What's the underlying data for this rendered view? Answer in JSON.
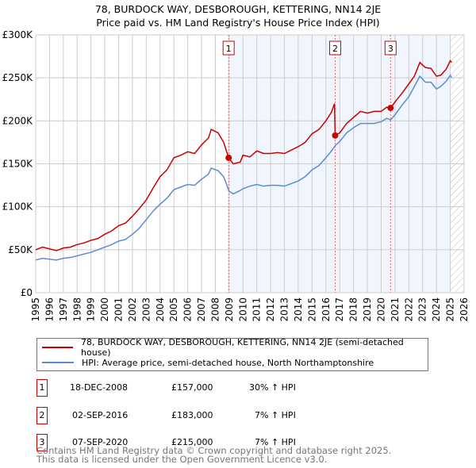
{
  "title": "78, BURDOCK WAY, DESBOROUGH, KETTERING, NN14 2JE",
  "subtitle": "Price paid vs. HM Land Registry's House Price Index (HPI)",
  "chart_data": {
    "type": "line",
    "title": "78, BURDOCK WAY, DESBOROUGH, KETTERING, NN14 2JE — Price paid vs. HM Land Registry's House Price Index (HPI)",
    "xlim": [
      1995,
      2026
    ],
    "ylim": [
      0,
      300000
    ],
    "x_ticks": [
      "1995",
      "1996",
      "1997",
      "1998",
      "1999",
      "2000",
      "2001",
      "2002",
      "2003",
      "2004",
      "2005",
      "2006",
      "2007",
      "2008",
      "2009",
      "2010",
      "2011",
      "2012",
      "2013",
      "2014",
      "2015",
      "2016",
      "2017",
      "2018",
      "2019",
      "2020",
      "2021",
      "2022",
      "2023",
      "2024",
      "2025",
      "2026"
    ],
    "y_ticks": [
      {
        "v": 0,
        "label": "£0"
      },
      {
        "v": 50000,
        "label": "£50K"
      },
      {
        "v": 100000,
        "label": "£100K"
      },
      {
        "v": 150000,
        "label": "£150K"
      },
      {
        "v": 200000,
        "label": "£200K"
      },
      {
        "v": 250000,
        "label": "£250K"
      },
      {
        "v": 300000,
        "label": "£300K"
      }
    ],
    "grid": true,
    "series": [
      {
        "name": "78, BURDOCK WAY, DESBOROUGH, KETTERING, NN14 2JE (semi-detached house)",
        "color": "#cc0000",
        "x": [
          1995,
          1995.5,
          1996,
          1996.5,
          1997,
          1997.5,
          1998,
          1998.5,
          1999,
          1999.5,
          2000,
          2000.5,
          2001,
          2001.5,
          2002,
          2002.5,
          2003,
          2003.5,
          2004,
          2004.5,
          2005,
          2005.5,
          2006,
          2006.5,
          2007,
          2007.5,
          2007.7,
          2008.2,
          2008.6,
          2008.96,
          2009.3,
          2009.8,
          2010,
          2010.5,
          2011,
          2011.5,
          2012,
          2012.5,
          2013,
          2013.5,
          2014,
          2014.5,
          2015,
          2015.5,
          2016,
          2016.4,
          2016.62,
          2016.67,
          2017,
          2017.5,
          2018,
          2018.5,
          2019,
          2019.5,
          2020,
          2020.4,
          2020.68,
          2021,
          2021.5,
          2022,
          2022.4,
          2022.8,
          2023.2,
          2023.6,
          2024,
          2024.3,
          2024.7,
          2025,
          2025.1
        ],
        "y": [
          50000,
          53000,
          51000,
          49000,
          52000,
          53000,
          56000,
          58000,
          61000,
          63000,
          68000,
          72000,
          78000,
          81000,
          89000,
          98000,
          108000,
          122000,
          135000,
          143000,
          157000,
          160000,
          164000,
          162000,
          172000,
          180000,
          190000,
          186000,
          175000,
          157000,
          150000,
          152000,
          160000,
          158000,
          165000,
          162000,
          162000,
          163000,
          162000,
          166000,
          170000,
          175000,
          185000,
          190000,
          200000,
          210000,
          220000,
          183000,
          186000,
          197000,
          204000,
          211000,
          209000,
          211000,
          211000,
          216000,
          215000,
          222000,
          232000,
          243000,
          252000,
          268000,
          262000,
          261000,
          252000,
          253000,
          260000,
          270000,
          268000
        ]
      },
      {
        "name": "HPI: Average price, semi-detached house, North Northamptonshire",
        "color": "#5b8bd0",
        "x": [
          1995,
          1995.5,
          1996,
          1996.5,
          1997,
          1997.5,
          1998,
          1998.5,
          1999,
          1999.5,
          2000,
          2000.5,
          2001,
          2001.5,
          2002,
          2002.5,
          2003,
          2003.5,
          2004,
          2004.5,
          2005,
          2005.5,
          2006,
          2006.5,
          2007,
          2007.5,
          2007.7,
          2008.2,
          2008.6,
          2009,
          2009.3,
          2009.8,
          2010,
          2010.5,
          2011,
          2011.5,
          2012,
          2012.5,
          2013,
          2013.5,
          2014,
          2014.5,
          2015,
          2015.5,
          2016,
          2016.4,
          2016.67,
          2017,
          2017.5,
          2018,
          2018.5,
          2019,
          2019.5,
          2020,
          2020.4,
          2020.68,
          2021,
          2021.5,
          2022,
          2022.4,
          2022.8,
          2023.2,
          2023.6,
          2024,
          2024.3,
          2024.7,
          2025,
          2025.1
        ],
        "y": [
          38000,
          40000,
          39000,
          38000,
          40000,
          41000,
          43000,
          45000,
          47000,
          50000,
          53000,
          56000,
          60000,
          62000,
          68000,
          75000,
          85000,
          95000,
          103000,
          110000,
          120000,
          123000,
          126000,
          125000,
          132000,
          138000,
          145000,
          142000,
          135000,
          118000,
          115000,
          119000,
          121000,
          124000,
          126000,
          124000,
          125000,
          125000,
          124000,
          127000,
          130000,
          135000,
          143000,
          148000,
          157000,
          165000,
          171000,
          176000,
          186000,
          192000,
          197000,
          197000,
          197000,
          199000,
          203000,
          201000,
          207000,
          218000,
          228000,
          240000,
          252000,
          245000,
          245000,
          237000,
          240000,
          246000,
          253000,
          250000
        ]
      }
    ],
    "sales": [
      {
        "label": "1",
        "x": 2008.96,
        "y": 157000,
        "date": "18-DEC-2008",
        "price": "£157,000",
        "hpi": "30% ↑ HPI"
      },
      {
        "label": "2",
        "x": 2016.67,
        "y": 183000,
        "date": "02-SEP-2016",
        "price": "£183,000",
        "hpi": "7% ↑ HPI"
      },
      {
        "label": "3",
        "x": 2020.68,
        "y": 215000,
        "date": "07-SEP-2020",
        "price": "£215,000",
        "hpi": "7% ↑ HPI"
      }
    ],
    "shaded_range": [
      2008.96,
      2025.0
    ],
    "hatched_from": 2025.0,
    "legend_position": "bottom"
  },
  "footer": {
    "line1": "Contains HM Land Registry data © Crown copyright and database right 2025.",
    "line2": "This data is licensed under the Open Government Licence v3.0."
  }
}
